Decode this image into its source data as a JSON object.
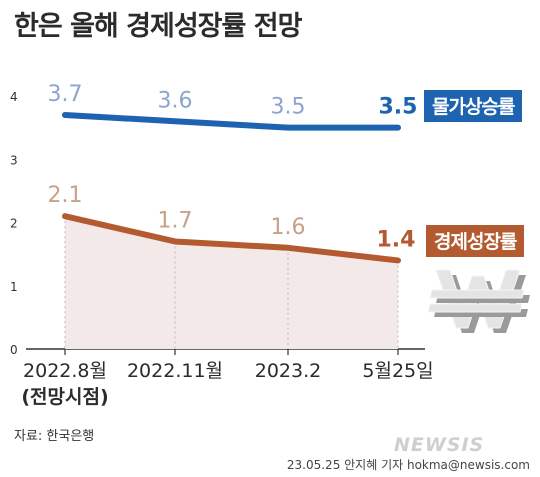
{
  "title": "한은 올해 경제성장률 전망",
  "source": "자료: 한국은행",
  "logo": "NEWSIS",
  "credit": "23.05.25 안지혜 기자 hokma@newsis.com",
  "colors": {
    "inflation": "#1e63b0",
    "inflation_label": "#8ca4cf",
    "growth": "#b45a30",
    "growth_label": "#c9a088",
    "growth_fill": "#f3e9e8",
    "grid": "#b8b8b8"
  },
  "icon": "won-sign-icon",
  "chart_data": {
    "type": "line",
    "categories": [
      "2022.8월\n(전망시점)",
      "2022.11월",
      "2023.2",
      "5월25일"
    ],
    "category_lines": [
      [
        "2022.8월",
        "(전망시점)"
      ],
      [
        "2022.11월"
      ],
      [
        "2023.2"
      ],
      [
        "5월25일"
      ]
    ],
    "ylim": [
      0,
      4
    ],
    "yticks": [
      "0",
      "1",
      "2",
      "3",
      "4"
    ],
    "grid": false,
    "series": [
      {
        "name": "물가상승률",
        "values": [
          3.7,
          3.6,
          3.5,
          3.5
        ],
        "labels": [
          "3.7",
          "3.6",
          "3.5",
          "3.5"
        ],
        "color": "#1e63b0"
      },
      {
        "name": "경제성장률",
        "values": [
          2.1,
          1.7,
          1.6,
          1.4
        ],
        "labels": [
          "2.1",
          "1.7",
          "1.6",
          "1.4"
        ],
        "color": "#b45a30",
        "area": true
      }
    ]
  }
}
